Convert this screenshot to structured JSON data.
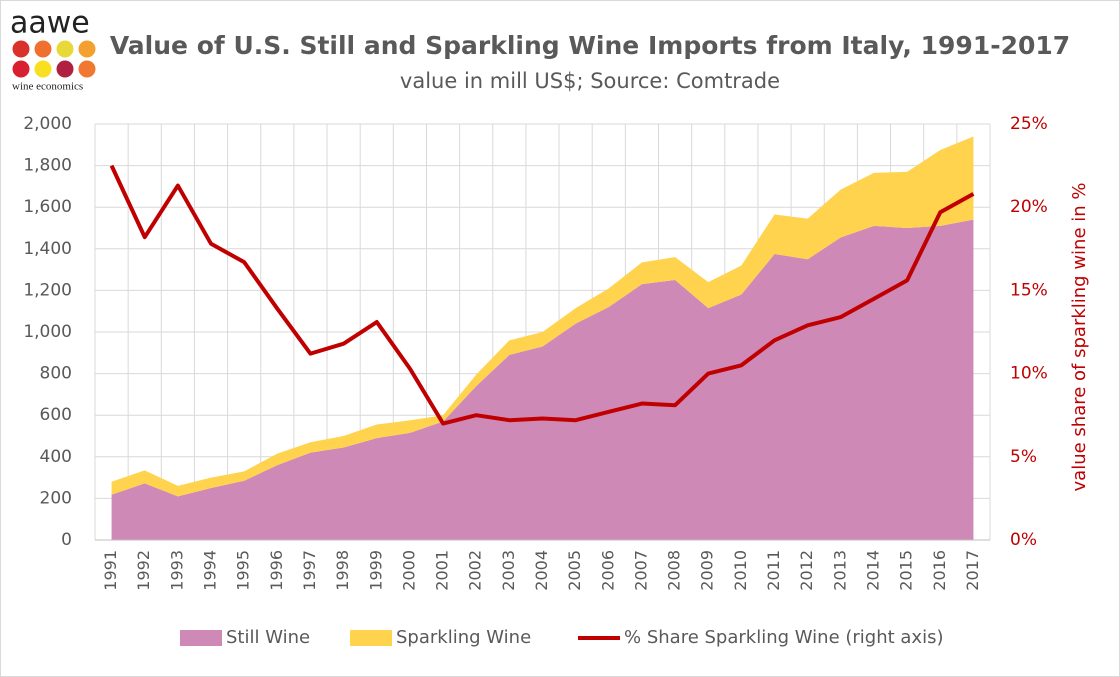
{
  "logo": {
    "name": "aawe",
    "tagline": "wine economics"
  },
  "chart_data": {
    "type": "area",
    "stacked": true,
    "title": "Value of U.S. Still and Sparkling Wine Imports from Italy, 1991-2017",
    "subtitle": "value in mill US$; Source: Comtrade",
    "y2_label": "value share of sparkling wine in %",
    "categories": [
      "1991",
      "1992",
      "1993",
      "1994",
      "1995",
      "1996",
      "1997",
      "1998",
      "1999",
      "2000",
      "2001",
      "2002",
      "2003",
      "2004",
      "2005",
      "2006",
      "2007",
      "2008",
      "2009",
      "2010",
      "2011",
      "2012",
      "2013",
      "2014",
      "2015",
      "2016",
      "2017"
    ],
    "series": [
      {
        "name": "Still Wine",
        "color": "#cf89b6",
        "values": [
          218,
          272,
          210,
          250,
          285,
          360,
          420,
          445,
          490,
          515,
          570,
          740,
          890,
          930,
          1040,
          1120,
          1230,
          1250,
          1115,
          1180,
          1375,
          1350,
          1455,
          1510,
          1500,
          1510,
          1540
        ]
      },
      {
        "name": "Sparkling Wine",
        "color": "#ffd34d",
        "values": [
          62,
          63,
          50,
          50,
          45,
          55,
          50,
          55,
          65,
          60,
          30,
          55,
          70,
          70,
          75,
          90,
          105,
          110,
          125,
          140,
          190,
          195,
          230,
          255,
          270,
          365,
          400
        ]
      },
      {
        "name": "% Share Sparkling Wine (right axis)",
        "type": "line",
        "axis": "y2",
        "color": "#c00000",
        "values": [
          22.5,
          18.2,
          21.3,
          17.8,
          16.7,
          13.9,
          11.2,
          11.8,
          13.1,
          10.3,
          7.0,
          7.5,
          7.2,
          7.3,
          7.2,
          7.7,
          8.2,
          8.1,
          10.0,
          10.5,
          12.0,
          12.9,
          13.4,
          14.5,
          15.6,
          19.7,
          20.8
        ]
      }
    ],
    "ylim": [
      0,
      2000
    ],
    "yticks": [
      0,
      200,
      400,
      600,
      800,
      {
        "value": 1000,
        "label": "1,000"
      },
      {
        "value": 1200,
        "label": "1,200"
      },
      {
        "value": 1400,
        "label": "1,400"
      },
      {
        "value": 1600,
        "label": "1,600"
      },
      {
        "value": 1800,
        "label": "1,800"
      },
      {
        "value": 2000,
        "label": "2,000"
      }
    ],
    "y2lim": [
      0,
      25
    ],
    "y2ticks": [
      {
        "value": 0,
        "label": "0%"
      },
      {
        "value": 5,
        "label": "5%"
      },
      {
        "value": 10,
        "label": "10%"
      },
      {
        "value": 15,
        "label": "15%"
      },
      {
        "value": 20,
        "label": "20%"
      },
      {
        "value": 25,
        "label": "25%"
      }
    ],
    "grid": true,
    "legend": "bottom"
  }
}
